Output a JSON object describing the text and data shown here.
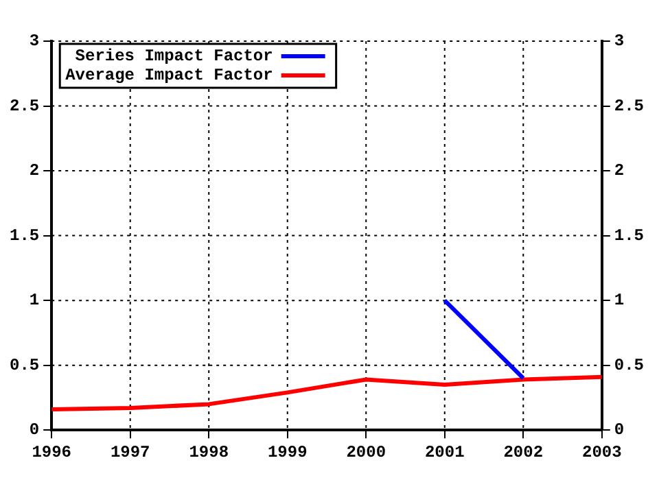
{
  "chart_data": {
    "type": "line",
    "x": [
      1996,
      1997,
      1998,
      1999,
      2000,
      2001,
      2002,
      2003
    ],
    "series": [
      {
        "name": "Series Impact Factor",
        "color": "#0000ff",
        "values": [
          null,
          null,
          null,
          null,
          null,
          1.0,
          0.4,
          null
        ]
      },
      {
        "name": "Average Impact Factor",
        "color": "#ff0000",
        "values": [
          0.16,
          0.17,
          0.2,
          0.29,
          0.39,
          0.35,
          0.39,
          0.41
        ]
      }
    ],
    "xlim": [
      1996,
      2003
    ],
    "xticks": [
      1996,
      1997,
      1998,
      1999,
      2000,
      2001,
      2002,
      2003
    ],
    "ylim": [
      0,
      3
    ],
    "yticks": [
      0,
      {
        "value": 0.5,
        "label": "0.5"
      },
      1,
      {
        "value": 1.5,
        "label": "1.5"
      },
      2,
      {
        "value": 2.5,
        "label": "2.5"
      },
      3
    ],
    "y2lim": [
      0,
      3
    ],
    "y2ticks": [
      0,
      {
        "value": 0.5,
        "label": "0.5"
      },
      1,
      {
        "value": 1.5,
        "label": "1.5"
      },
      2,
      {
        "value": 2.5,
        "label": "2.5"
      },
      3
    ],
    "grid": true,
    "legend": "top left",
    "marker": "none",
    "line_style": "solid"
  }
}
